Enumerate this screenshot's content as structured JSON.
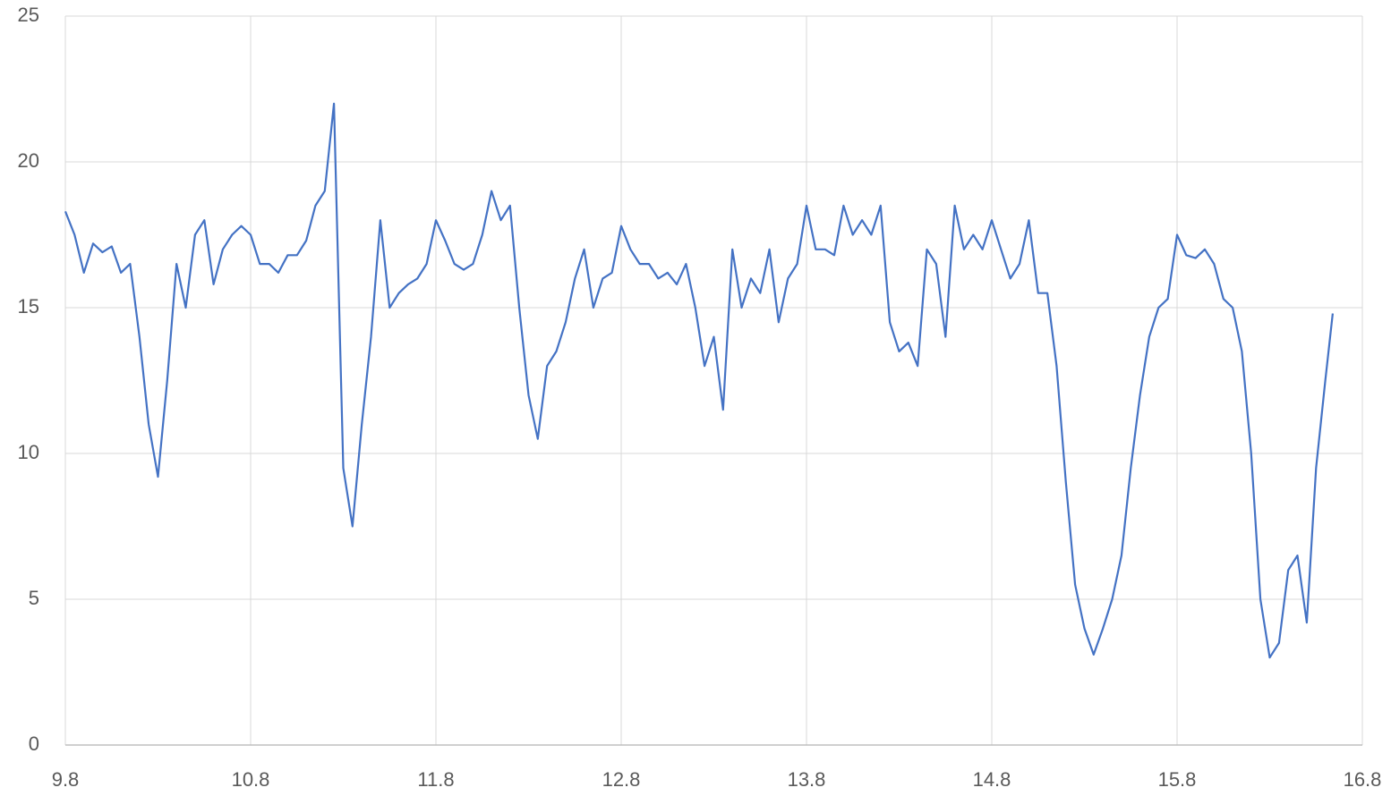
{
  "chart_data": {
    "type": "line",
    "x": [
      9.8,
      9.85,
      9.9,
      9.95,
      10.0,
      10.05,
      10.1,
      10.15,
      10.2,
      10.25,
      10.3,
      10.35,
      10.4,
      10.45,
      10.5,
      10.55,
      10.6,
      10.65,
      10.7,
      10.75,
      10.8,
      10.85,
      10.9,
      10.95,
      11.0,
      11.05,
      11.1,
      11.15,
      11.2,
      11.25,
      11.3,
      11.35,
      11.4,
      11.45,
      11.5,
      11.55,
      11.6,
      11.65,
      11.7,
      11.75,
      11.8,
      11.85,
      11.9,
      11.95,
      12.0,
      12.05,
      12.1,
      12.15,
      12.2,
      12.25,
      12.3,
      12.35,
      12.4,
      12.45,
      12.5,
      12.55,
      12.6,
      12.65,
      12.7,
      12.75,
      12.8,
      12.85,
      12.9,
      12.95,
      13.0,
      13.05,
      13.1,
      13.15,
      13.2,
      13.25,
      13.3,
      13.35,
      13.4,
      13.45,
      13.5,
      13.55,
      13.6,
      13.65,
      13.7,
      13.75,
      13.8,
      13.85,
      13.9,
      13.95,
      14.0,
      14.05,
      14.1,
      14.15,
      14.2,
      14.25,
      14.3,
      14.35,
      14.4,
      14.45,
      14.5,
      14.55,
      14.6,
      14.65,
      14.7,
      14.75,
      14.8,
      14.85,
      14.9,
      14.95,
      15.0,
      15.05,
      15.1,
      15.15,
      15.2,
      15.25,
      15.3,
      15.35,
      15.4,
      15.45,
      15.5,
      15.55,
      15.6,
      15.65,
      15.7,
      15.75,
      15.8,
      15.85,
      15.9,
      15.95,
      16.0,
      16.05,
      16.1,
      16.15,
      16.2,
      16.25,
      16.3,
      16.35,
      16.4,
      16.45,
      16.5,
      16.55,
      16.6,
      16.64
    ],
    "series": [
      {
        "color": "#4472c4",
        "values": [
          18.3,
          17.5,
          16.2,
          17.2,
          16.9,
          17.1,
          16.2,
          16.5,
          14.0,
          11.0,
          9.2,
          12.5,
          16.5,
          15.0,
          17.5,
          18.0,
          15.8,
          17.0,
          17.5,
          17.8,
          17.5,
          16.5,
          16.5,
          16.2,
          16.8,
          16.8,
          17.3,
          18.5,
          19.0,
          22.0,
          9.5,
          7.5,
          11.0,
          14.0,
          18.0,
          15.0,
          15.5,
          15.8,
          16.0,
          16.5,
          18.0,
          17.3,
          16.5,
          16.3,
          16.5,
          17.5,
          19.0,
          18.0,
          18.5,
          15.0,
          12.0,
          10.5,
          13.0,
          13.5,
          14.5,
          16.0,
          17.0,
          15.0,
          16.0,
          16.2,
          17.8,
          17.0,
          16.5,
          16.5,
          16.0,
          16.2,
          15.8,
          16.5,
          15.0,
          13.0,
          14.0,
          11.5,
          17.0,
          15.0,
          16.0,
          15.5,
          17.0,
          14.5,
          16.0,
          16.5,
          18.5,
          17.0,
          17.0,
          16.8,
          18.5,
          17.5,
          18.0,
          17.5,
          18.5,
          14.5,
          13.5,
          13.8,
          13.0,
          17.0,
          16.5,
          14.0,
          18.5,
          17.0,
          17.5,
          17.0,
          18.0,
          17.0,
          16.0,
          16.5,
          18.0,
          15.5,
          15.5,
          13.0,
          9.0,
          5.5,
          4.0,
          3.1,
          4.0,
          5.0,
          6.5,
          9.5,
          12.0,
          14.0,
          15.0,
          15.3,
          17.5,
          16.8,
          16.7,
          17.0,
          16.5,
          15.3,
          15.0,
          13.5,
          10.0,
          5.0,
          3.0,
          3.5,
          6.0,
          6.5,
          4.2,
          9.5,
          12.5,
          14.8
        ]
      }
    ],
    "xlim": [
      9.8,
      16.8
    ],
    "xticks": [
      9.8,
      10.8,
      11.8,
      12.8,
      13.8,
      14.8,
      15.8,
      16.8
    ],
    "ylim": [
      0,
      25
    ],
    "yticks": [
      0,
      5,
      10,
      15,
      20,
      25
    ],
    "grid": true
  }
}
